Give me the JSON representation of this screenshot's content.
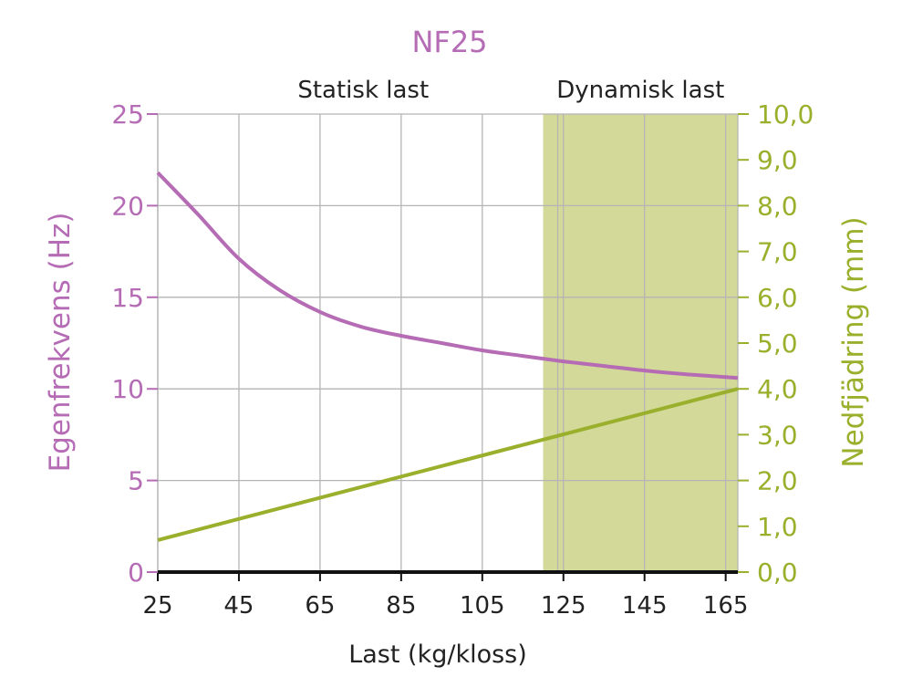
{
  "chart_data": {
    "type": "line",
    "title": "NF25",
    "xlabel": "Last (kg/kloss)",
    "ylabel_left": "Egenfrekvens (Hz)",
    "ylabel_right": "Nedfjädring (mm)",
    "x_ticks": [
      25,
      45,
      65,
      85,
      105,
      125,
      145,
      165
    ],
    "y_left_ticks": [
      0,
      5,
      10,
      15,
      20,
      25
    ],
    "y_right_ticks": [
      "0,0",
      "1,0",
      "2,0",
      "3,0",
      "4,0",
      "5,0",
      "6,0",
      "7,0",
      "8,0",
      "9,0",
      "10,0"
    ],
    "xlim": [
      25,
      168
    ],
    "ylim_left": [
      0,
      25
    ],
    "ylim_right": [
      0,
      10
    ],
    "grid": true,
    "regions": [
      {
        "label": "Statisk last",
        "from": 25,
        "to": 120
      },
      {
        "label": "Dynamisk last",
        "from": 120,
        "to": 168,
        "shaded": true
      }
    ],
    "colors": {
      "title": "#b56cb5",
      "left_axis": "#b56cb5",
      "right_axis": "#9aaf2b",
      "series_frequency": "#b56cb5",
      "series_deflection": "#9aaf2b",
      "dynamic_region": "#d3d998",
      "grid": "#b5b5b5",
      "x_axis": "#111111",
      "text": "#222222"
    },
    "series": [
      {
        "axis": "left",
        "x": [
          25,
          35,
          45,
          55,
          65,
          75,
          85,
          95,
          105,
          115,
          125,
          135,
          145,
          155,
          168
        ],
        "values": [
          21.8,
          19.5,
          17.1,
          15.4,
          14.2,
          13.4,
          12.9,
          12.5,
          12.1,
          11.8,
          11.5,
          11.25,
          11.0,
          10.8,
          10.6
        ]
      },
      {
        "axis": "right",
        "x": [
          25,
          168
        ],
        "values": [
          0.7,
          4.0
        ]
      }
    ]
  }
}
